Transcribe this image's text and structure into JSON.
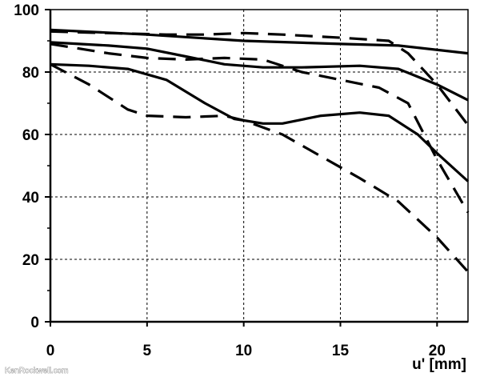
{
  "chart_data": {
    "type": "line",
    "title": "",
    "xlabel": "u' [mm]",
    "ylabel": "",
    "xlim": [
      0,
      21.6
    ],
    "ylim": [
      0,
      100
    ],
    "x_ticks": [
      0,
      5,
      10,
      15,
      20
    ],
    "y_ticks": [
      0,
      20,
      40,
      60,
      80,
      100
    ],
    "grid": true,
    "legend": "none",
    "series": [
      {
        "style": "solid",
        "points": [
          [
            0,
            93.5
          ],
          [
            5,
            92
          ],
          [
            10,
            90
          ],
          [
            15,
            89
          ],
          [
            18,
            88.5
          ],
          [
            21.6,
            86
          ]
        ]
      },
      {
        "style": "dashed",
        "points": [
          [
            0,
            93
          ],
          [
            3,
            92.5
          ],
          [
            6,
            92
          ],
          [
            8,
            92
          ],
          [
            10,
            92.5
          ],
          [
            12,
            92
          ],
          [
            15,
            91
          ],
          [
            17.5,
            90
          ],
          [
            18.5,
            86
          ],
          [
            20,
            76
          ],
          [
            21.6,
            63
          ]
        ]
      },
      {
        "style": "solid",
        "points": [
          [
            0,
            89.5
          ],
          [
            3,
            88.5
          ],
          [
            5,
            87.5
          ],
          [
            7,
            85
          ],
          [
            9,
            82.5
          ],
          [
            11,
            81.5
          ],
          [
            13,
            81.5
          ],
          [
            16,
            82
          ],
          [
            18,
            81
          ],
          [
            20,
            76
          ],
          [
            21.6,
            71
          ]
        ]
      },
      {
        "style": "dashed",
        "points": [
          [
            0,
            89
          ],
          [
            3,
            86
          ],
          [
            5,
            84.5
          ],
          [
            7,
            84
          ],
          [
            9,
            84.5
          ],
          [
            11,
            84
          ],
          [
            13,
            80
          ],
          [
            15,
            77.5
          ],
          [
            17,
            75
          ],
          [
            18.5,
            70
          ],
          [
            20,
            52
          ],
          [
            21.6,
            35
          ]
        ]
      },
      {
        "style": "solid",
        "points": [
          [
            0,
            82.5
          ],
          [
            2,
            82
          ],
          [
            4,
            81
          ],
          [
            6,
            77.5
          ],
          [
            8,
            70
          ],
          [
            9.5,
            65
          ],
          [
            11,
            63.5
          ],
          [
            12,
            63.5
          ],
          [
            14,
            66
          ],
          [
            16,
            67
          ],
          [
            17.5,
            66
          ],
          [
            19,
            60
          ],
          [
            20,
            54
          ],
          [
            21.6,
            45
          ]
        ]
      },
      {
        "style": "dashed",
        "points": [
          [
            0,
            82.5
          ],
          [
            2,
            76
          ],
          [
            4,
            68
          ],
          [
            5,
            66
          ],
          [
            7,
            65.5
          ],
          [
            9,
            66
          ],
          [
            10,
            64.5
          ],
          [
            12,
            60
          ],
          [
            14,
            53
          ],
          [
            16,
            46
          ],
          [
            18,
            38.5
          ],
          [
            20,
            27
          ],
          [
            21.6,
            16
          ]
        ]
      }
    ],
    "watermark": "KenRockwell.com"
  }
}
